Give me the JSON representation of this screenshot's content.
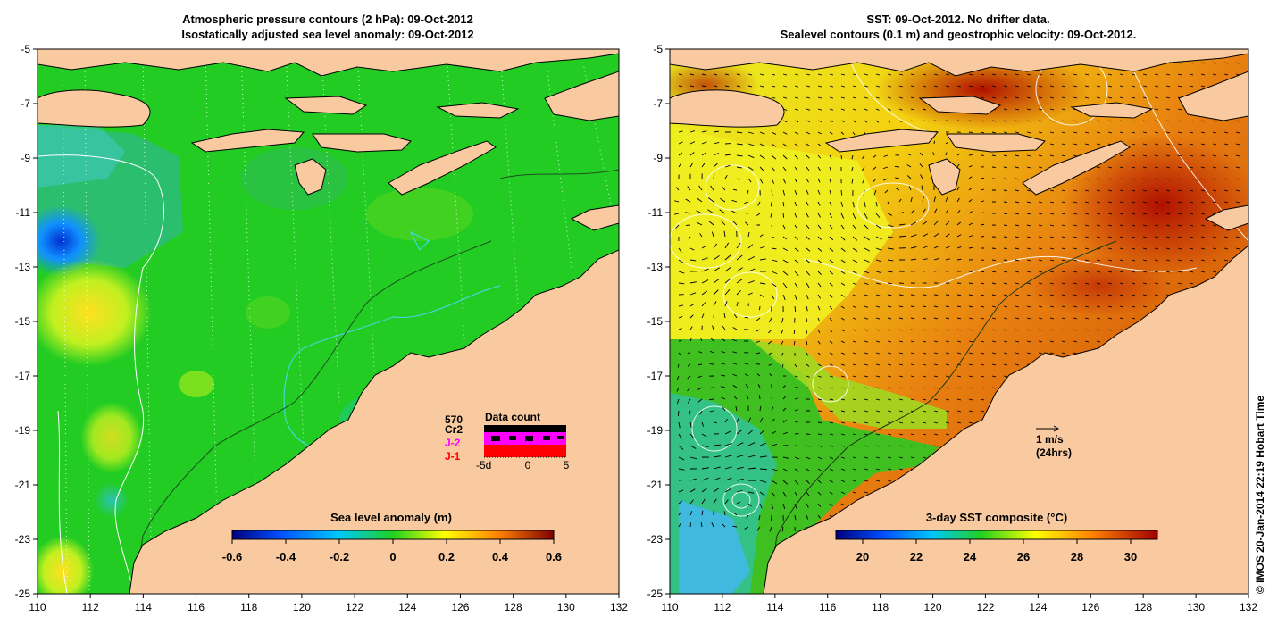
{
  "left_panel": {
    "title_line1": "Atmospheric pressure contours (2 hPa): 09-Oct-2012",
    "title_line2": "Isostatically adjusted sea level anomaly: 09-Oct-2012",
    "colorbar": {
      "title": "Sea level anomaly (m)",
      "ticks": [
        "-0.6",
        "-0.4",
        "-0.2",
        "0",
        "0.2",
        "0.4",
        "0.6"
      ],
      "min": -0.6,
      "max": 0.6
    },
    "data_count": {
      "title": "Data count",
      "max_label": "570",
      "series": [
        {
          "label": "Cr2",
          "color": "#000000"
        },
        {
          "label": "J-2",
          "color": "#ff00ff"
        },
        {
          "label": "J-1",
          "color": "#ff0000"
        }
      ],
      "axis_labels": [
        "-5d",
        "0",
        "5"
      ]
    }
  },
  "right_panel": {
    "title_line1": "SST: 09-Oct-2012. No drifter data.",
    "title_line2": "Sealevel contours (0.1 m) and geostrophic velocity: 09-Oct-2012.",
    "colorbar": {
      "title": "3-day SST composite (°C)",
      "ticks": [
        "20",
        "22",
        "24",
        "26",
        "28",
        "30"
      ],
      "min": 19,
      "max": 31
    },
    "velocity_key": {
      "line1": "1 m/s",
      "line2": "(24hrs)"
    }
  },
  "axes": {
    "lon_ticks": [
      "110",
      "112",
      "114",
      "116",
      "118",
      "120",
      "122",
      "124",
      "126",
      "128",
      "130",
      "132"
    ],
    "lat_ticks": [
      "-5",
      "-7",
      "-9",
      "-11",
      "-13",
      "-15",
      "-17",
      "-19",
      "-21",
      "-23",
      "-25"
    ],
    "lon_range": [
      110,
      132
    ],
    "lat_range": [
      -25,
      -5
    ]
  },
  "credit": "© IMOS 20-Jan-2014 22:19 Hobart Time",
  "colors": {
    "land": "#f9c9a0",
    "ocean_base": "#22cc22",
    "sst_warm": "#e07010",
    "sst_hot": "#b82000",
    "sst_mid": "#f0e020",
    "coast": "#000000",
    "contour_white": "#ffffff",
    "contour_cyan": "#40d8d8"
  }
}
